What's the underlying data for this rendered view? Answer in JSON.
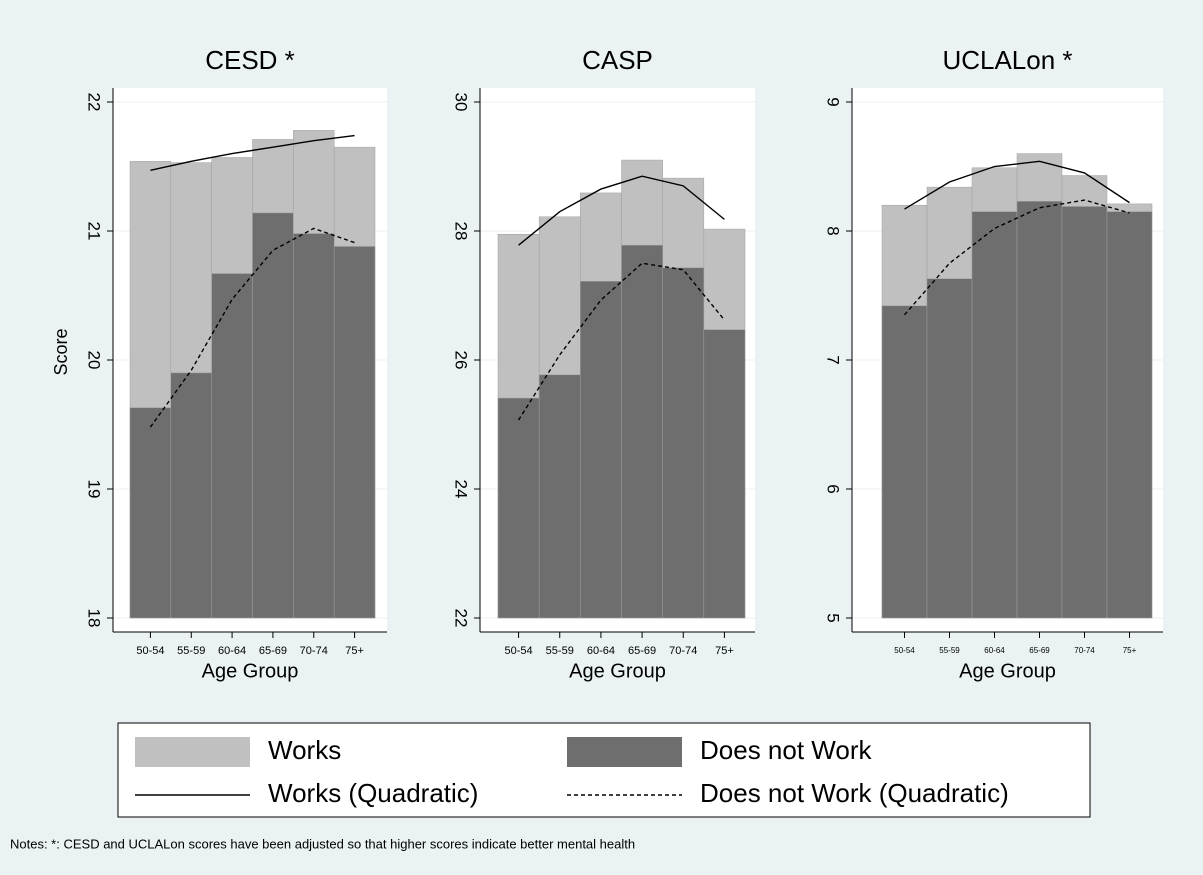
{
  "chart_data": [
    {
      "type": "bar",
      "title": "CESD *",
      "y_label": "Score",
      "x_label": "Age Group",
      "categories": [
        "50-54",
        "55-59",
        "60-64",
        "65-69",
        "70-74",
        "75+"
      ],
      "ylim": [
        18,
        22
      ],
      "yticks": [
        18,
        19,
        20,
        21,
        22
      ],
      "grid": true,
      "series": [
        {
          "name": "Works",
          "type": "bar",
          "color": "#c0c0c0",
          "values": [
            21.54,
            21.53,
            21.57,
            21.71,
            21.78,
            21.65
          ]
        },
        {
          "name": "Does not Work",
          "type": "bar",
          "color": "#6e6e6e",
          "values": [
            19.63,
            19.9,
            20.67,
            21.14,
            20.98,
            20.88
          ]
        },
        {
          "name": "Works (Quadratic)",
          "type": "line",
          "style": "solid",
          "color": "#000000",
          "values": [
            21.47,
            21.54,
            21.6,
            21.65,
            21.7,
            21.74
          ]
        },
        {
          "name": "Does not Work (Quadratic)",
          "type": "line",
          "style": "dashed",
          "color": "#000000",
          "values": [
            19.48,
            19.92,
            20.47,
            20.85,
            21.02,
            20.91
          ]
        }
      ]
    },
    {
      "type": "bar",
      "title": "CASP",
      "x_label": "Age Group",
      "categories": [
        "50-54",
        "55-59",
        "60-64",
        "65-69",
        "70-74",
        "75+"
      ],
      "ylim": [
        22,
        30
      ],
      "yticks": [
        22,
        24,
        26,
        28,
        30
      ],
      "grid": true,
      "series": [
        {
          "name": "Works",
          "type": "bar",
          "color": "#c0c0c0",
          "values": [
            27.95,
            28.22,
            28.59,
            29.1,
            28.82,
            28.03
          ]
        },
        {
          "name": "Does not Work",
          "type": "bar",
          "color": "#6e6e6e",
          "values": [
            25.41,
            25.77,
            27.22,
            27.78,
            27.43,
            26.47
          ]
        },
        {
          "name": "Works (Quadratic)",
          "type": "line",
          "style": "solid",
          "color": "#000000",
          "values": [
            27.78,
            28.3,
            28.65,
            28.85,
            28.7,
            28.18
          ]
        },
        {
          "name": "Does not Work (Quadratic)",
          "type": "line",
          "style": "dashed",
          "color": "#000000",
          "values": [
            25.07,
            26.08,
            26.93,
            27.5,
            27.4,
            26.62
          ]
        }
      ]
    },
    {
      "type": "bar",
      "title": "UCLALon *",
      "x_label": "Age Group",
      "categories": [
        "50-54",
        "55-59",
        "60-64",
        "65-69",
        "70-74",
        "75+"
      ],
      "ylim": [
        5,
        9
      ],
      "yticks": [
        5,
        6,
        7,
        8,
        9
      ],
      "grid": true,
      "series": [
        {
          "name": "Works",
          "type": "bar",
          "color": "#c0c0c0",
          "values": [
            8.2,
            8.34,
            8.49,
            8.6,
            8.43,
            8.21
          ]
        },
        {
          "name": "Does not Work",
          "type": "bar",
          "color": "#6e6e6e",
          "values": [
            7.42,
            7.63,
            8.15,
            8.23,
            8.19,
            8.15
          ]
        },
        {
          "name": "Works (Quadratic)",
          "type": "line",
          "style": "solid",
          "color": "#000000",
          "values": [
            8.17,
            8.38,
            8.5,
            8.54,
            8.45,
            8.22
          ]
        },
        {
          "name": "Does not Work (Quadratic)",
          "type": "line",
          "style": "dashed",
          "color": "#000000",
          "values": [
            7.35,
            7.75,
            8.02,
            8.18,
            8.24,
            8.14
          ]
        }
      ]
    }
  ],
  "notes": "Notes: *: CESD and UCLALon scores have been adjusted so that higher scores indicate better mental health"
}
